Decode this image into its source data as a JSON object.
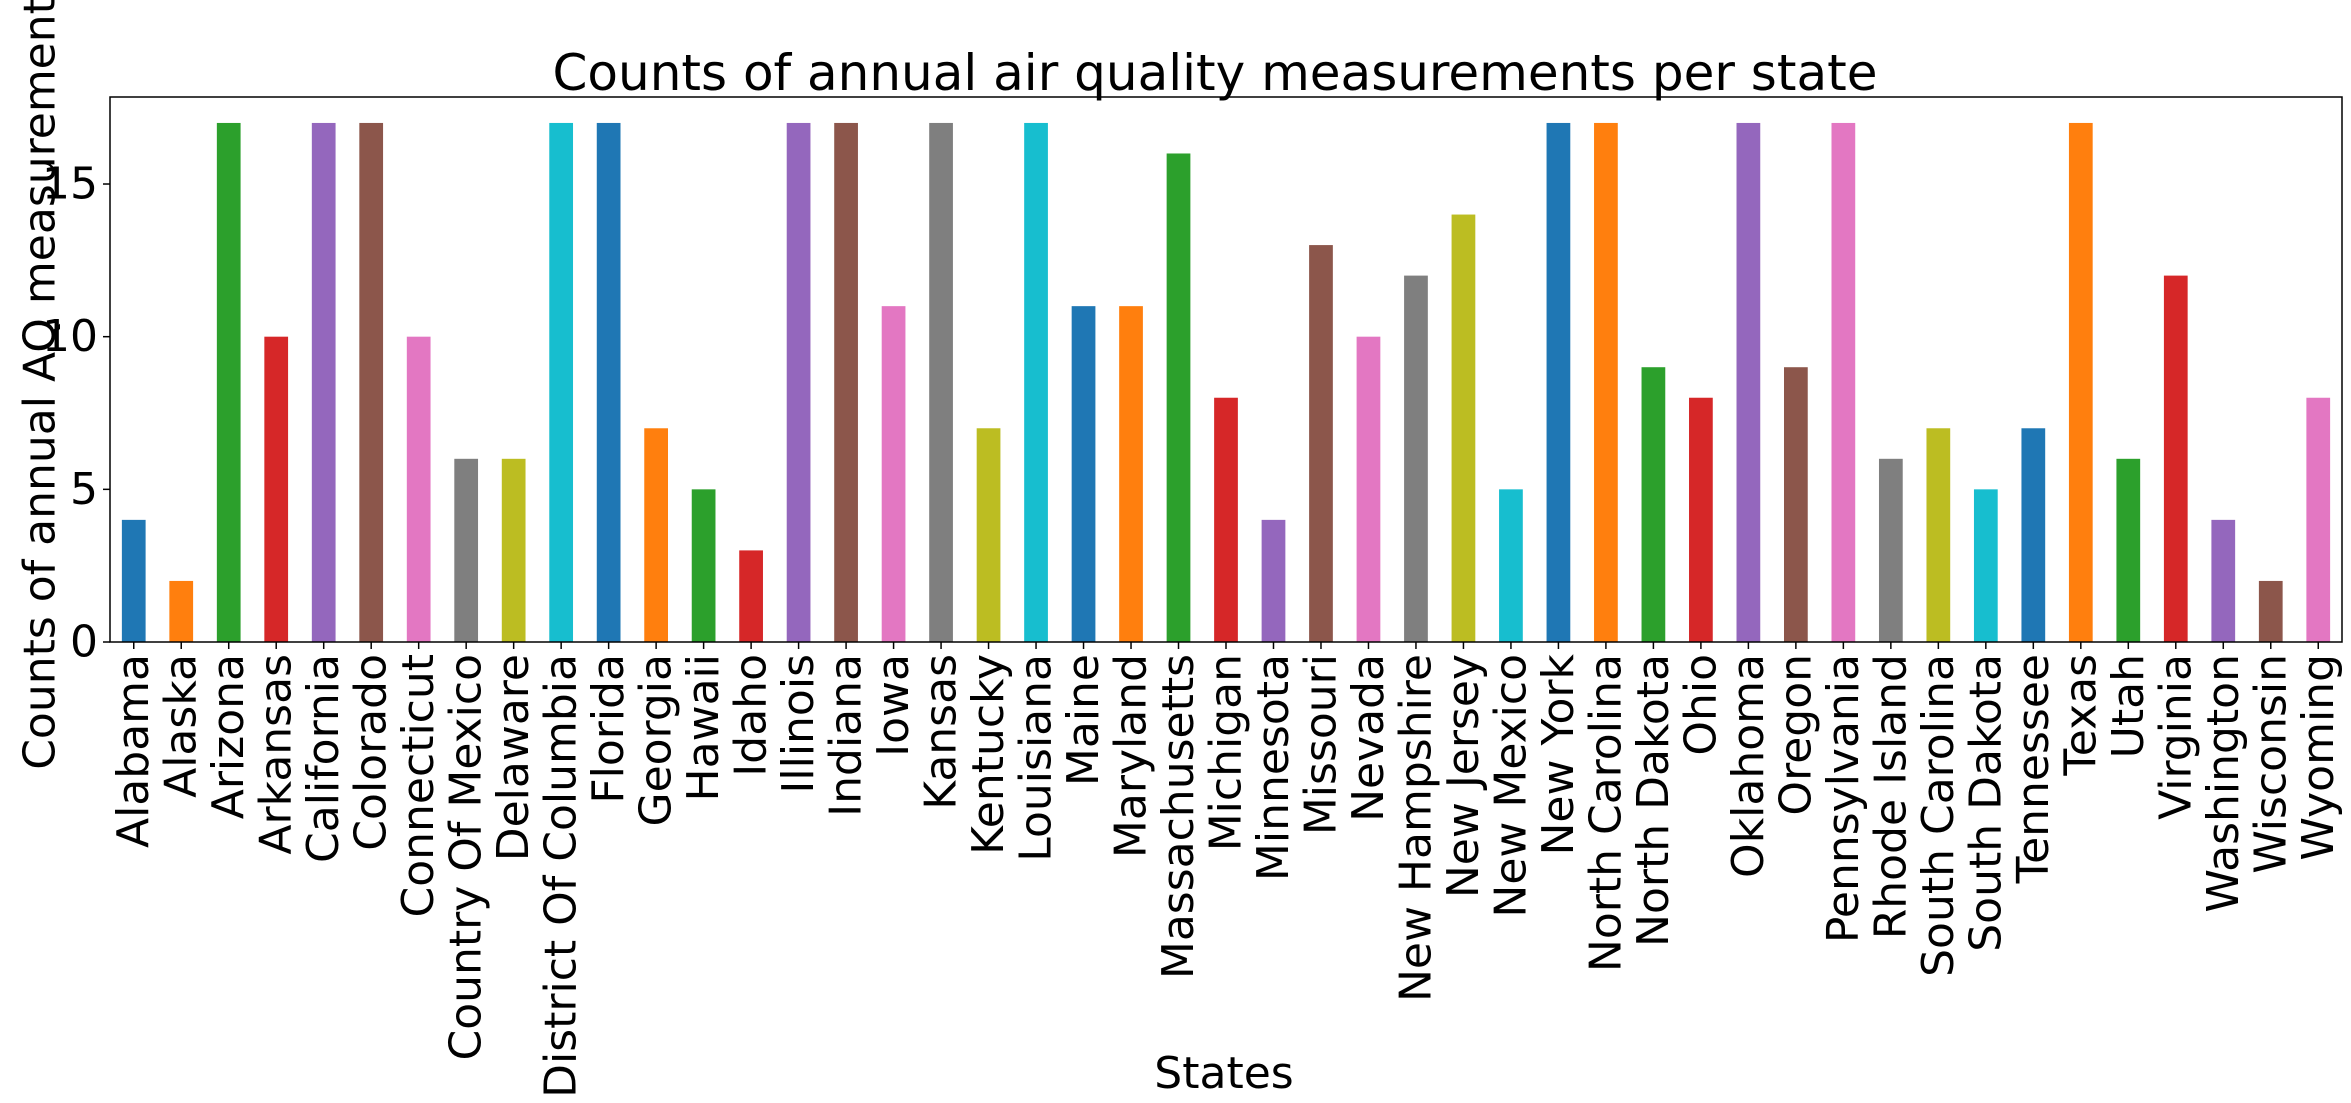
{
  "chart_data": {
    "type": "bar",
    "title": "Counts of annual air quality measurements per state",
    "xlabel": "States",
    "ylabel": "Counts of annual AQ measurements",
    "ylim": [
      0,
      17.85
    ],
    "yticks": [
      0,
      5,
      10,
      15
    ],
    "grid": false,
    "palette": [
      "#1f77b4",
      "#ff7f0e",
      "#2ca02c",
      "#d62728",
      "#9467bd",
      "#8c564b",
      "#e377c2",
      "#7f7f7f",
      "#bcbd22",
      "#17becf"
    ],
    "categories": [
      "Alabama",
      "Alaska",
      "Arizona",
      "Arkansas",
      "California",
      "Colorado",
      "Connecticut",
      "Country Of Mexico",
      "Delaware",
      "District Of Columbia",
      "Florida",
      "Georgia",
      "Hawaii",
      "Idaho",
      "Illinois",
      "Indiana",
      "Iowa",
      "Kansas",
      "Kentucky",
      "Louisiana",
      "Maine",
      "Maryland",
      "Massachusetts",
      "Michigan",
      "Minnesota",
      "Missouri",
      "Nevada",
      "New Hampshire",
      "New Jersey",
      "New Mexico",
      "New York",
      "North Carolina",
      "North Dakota",
      "Ohio",
      "Oklahoma",
      "Oregon",
      "Pennsylvania",
      "Rhode Island",
      "South Carolina",
      "South Dakota",
      "Tennessee",
      "Texas",
      "Utah",
      "Virginia",
      "Washington",
      "Wisconsin",
      "Wyoming"
    ],
    "values": [
      4,
      2,
      17,
      10,
      17,
      17,
      10,
      6,
      6,
      17,
      17,
      7,
      5,
      3,
      17,
      17,
      11,
      17,
      7,
      17,
      11,
      11,
      16,
      8,
      4,
      13,
      10,
      12,
      14,
      5,
      17,
      17,
      9,
      8,
      17,
      9,
      17,
      6,
      7,
      5,
      7,
      17,
      6,
      12,
      4,
      2,
      8
    ]
  }
}
